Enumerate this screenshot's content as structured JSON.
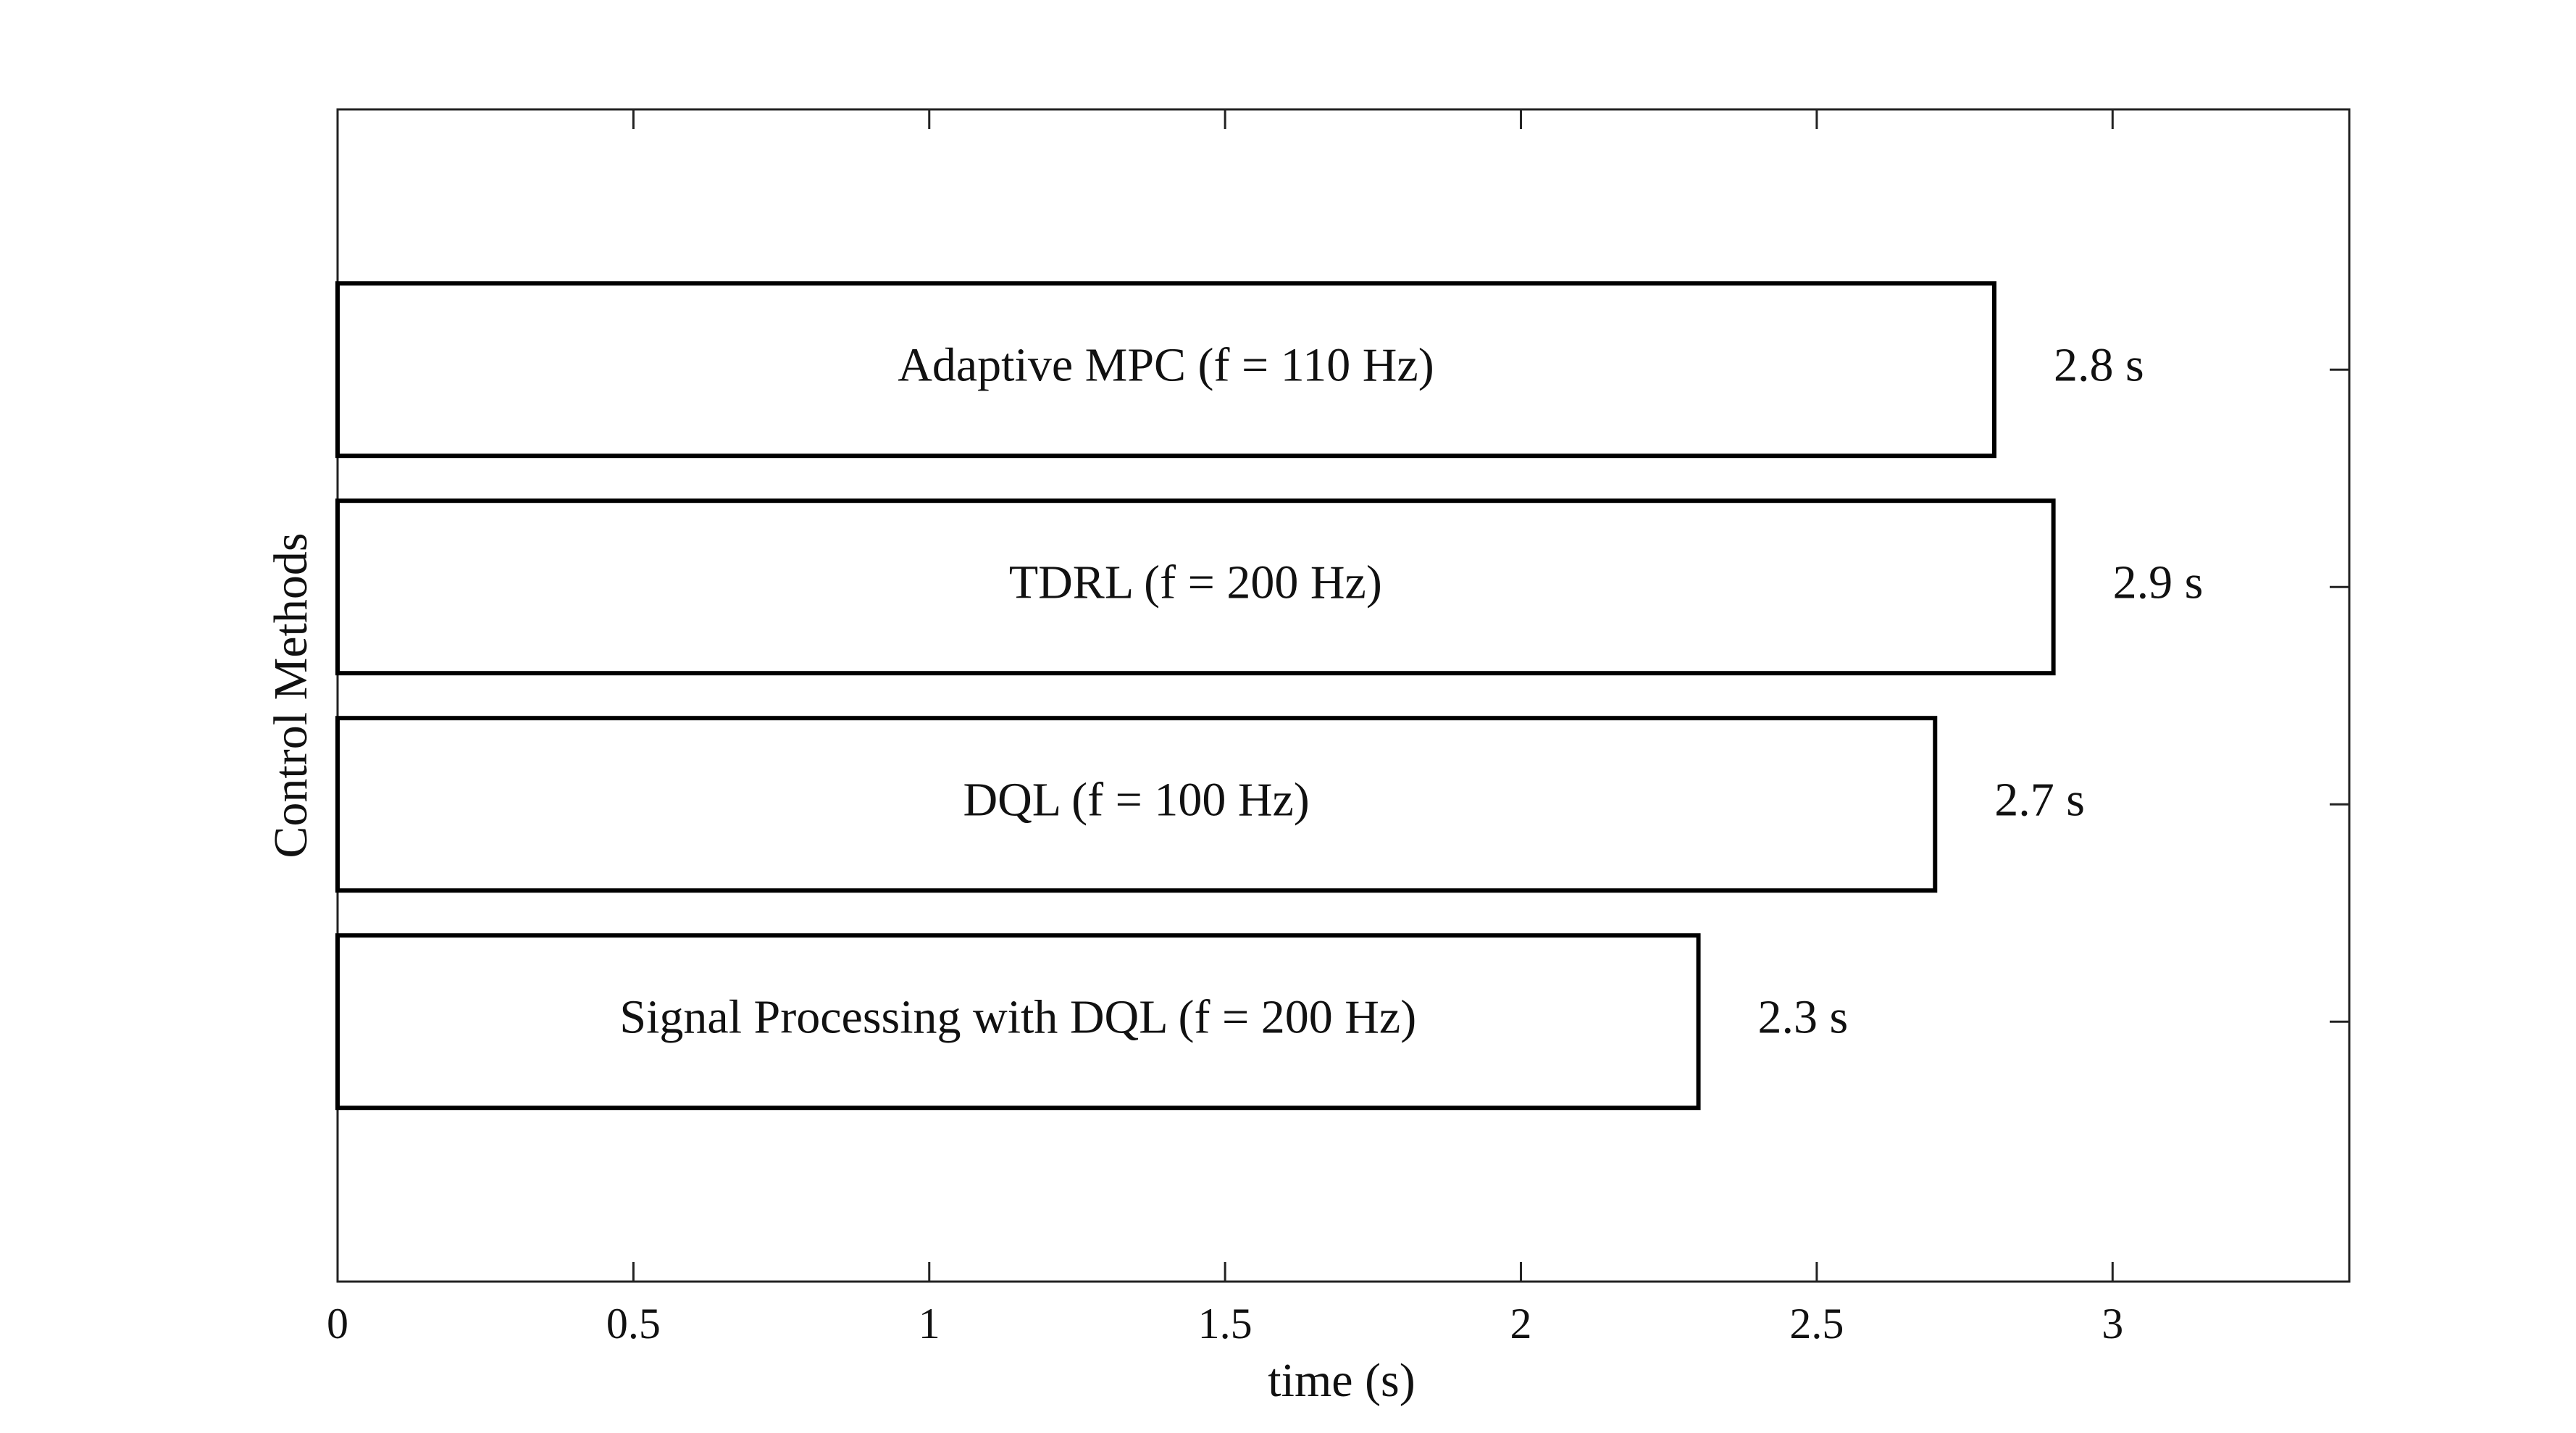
{
  "chart_data": {
    "type": "bar",
    "orientation": "horizontal",
    "x_label": "time (s)",
    "y_label": "Control Methods",
    "categories": [
      "Adaptive MPC (f = 110 Hz)",
      "TDRL (f = 200 Hz)",
      "DQL (f = 100 Hz)",
      "Signal Processing with DQL (f = 200 Hz)"
    ],
    "values": [
      2.8,
      2.9,
      2.7,
      2.3
    ],
    "value_labels": [
      "2.8 s",
      "2.9 s",
      "2.7 s",
      "2.3 s"
    ],
    "color": "#ffffff",
    "edge_color": "#000000",
    "xlim": [
      0,
      3.4
    ],
    "xticks": [
      0,
      0.5,
      1,
      1.5,
      2,
      2.5,
      3
    ],
    "grid": false
  }
}
